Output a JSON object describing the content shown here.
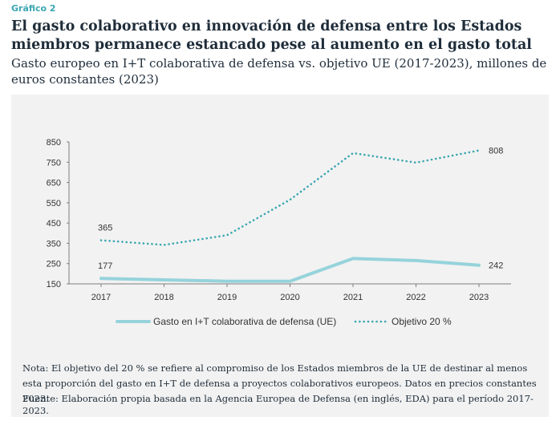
{
  "header": {
    "kicker": "Gráfico 2",
    "title": "El gasto colaborativo en innovación de defensa entre los Estados miembros permanece estancado pese al aumento en el gasto total",
    "subtitle": "Gasto europeo en I+T colaborativa de defensa vs. objetivo UE (2017-2023), millones de euros constantes (2023)"
  },
  "footer": {
    "note": "Nota: El objetivo del 20 % se refiere al compromiso de los Estados miembros de la UE de destinar al menos esta proporción del gasto en I+T de defensa a proyectos colaborativos europeos. Datos en precios constantes 2023.",
    "source": "Fuente: Elaboración propia basada en la Agencia Europea de Defensa (en inglés, EDA) para el período 2017-2023."
  },
  "chart_data": {
    "type": "line",
    "x": [
      "2017",
      "2018",
      "2019",
      "2020",
      "2021",
      "2022",
      "2023"
    ],
    "ylim": [
      150,
      850
    ],
    "yticks": [
      150,
      250,
      350,
      450,
      550,
      650,
      750,
      850
    ],
    "grid": false,
    "legend_position": "bottom",
    "series": [
      {
        "name": "Gasto en I+T colaborativa de defensa (UE)",
        "values": [
          177,
          170,
          163,
          163,
          275,
          265,
          242
        ],
        "color": "#96d3db",
        "style": "solid",
        "labels": {
          "0": "177",
          "6": "242"
        }
      },
      {
        "name": "Objetivo 20 %",
        "values": [
          365,
          342,
          390,
          565,
          795,
          748,
          808
        ],
        "color": "#3aa6b1",
        "style": "dotted",
        "labels": {
          "0": "365",
          "6": "808"
        }
      }
    ]
  }
}
